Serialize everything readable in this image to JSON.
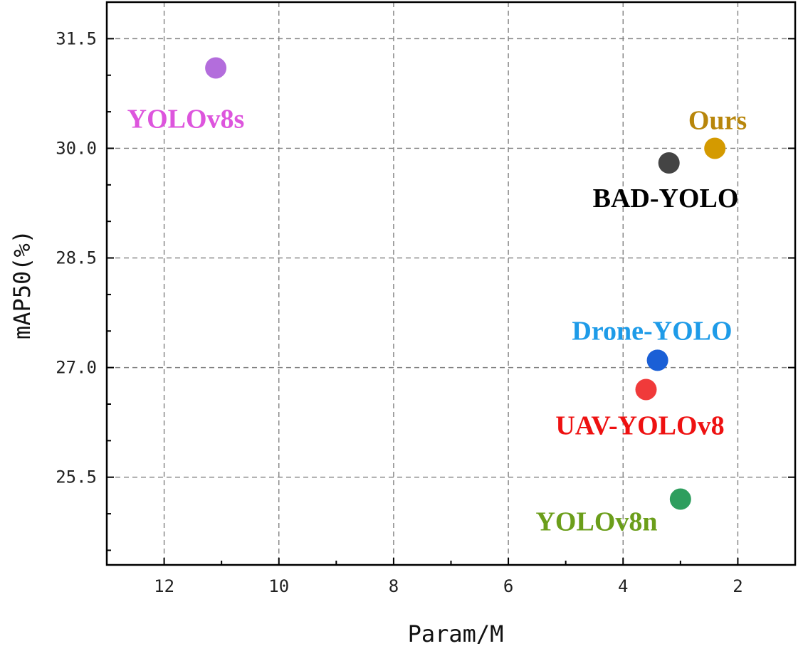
{
  "chart_data": {
    "type": "scatter",
    "title": "",
    "xlabel": "Param/M",
    "ylabel": "mAP50(%)",
    "xlim": [
      13,
      1
    ],
    "ylim": [
      24.3,
      32.0
    ],
    "x_reversed": true,
    "x_ticks": [
      12,
      10,
      8,
      6,
      4,
      2
    ],
    "x_tick_labels": [
      "12",
      "10",
      "8",
      "6",
      "4",
      "2"
    ],
    "y_ticks": [
      25.5,
      27.0,
      28.5,
      30.0,
      31.5
    ],
    "y_tick_labels": [
      "25.5",
      "27.0",
      "28.5",
      "30.0",
      "31.5"
    ],
    "grid": true,
    "points": [
      {
        "label": "YOLOv8s",
        "x": 11.1,
        "y": 31.1,
        "color": "#b36ddc",
        "label_color": "#dd55dd"
      },
      {
        "label": "Ours",
        "x": 2.4,
        "y": 30.0,
        "color": "#d49a00",
        "label_color": "#b8860b"
      },
      {
        "label": "BAD-YOLO",
        "x": 3.2,
        "y": 29.8,
        "color": "#444444",
        "label_color": "#000000"
      },
      {
        "label": "Drone-YOLO",
        "x": 3.4,
        "y": 27.1,
        "color": "#1a5fd6",
        "label_color": "#1e9be8"
      },
      {
        "label": "UAV-YOLOv8",
        "x": 3.6,
        "y": 26.7,
        "color": "#f03a3a",
        "label_color": "#ee1111"
      },
      {
        "label": "YOLOv8n",
        "x": 3.0,
        "y": 25.2,
        "color": "#2e9e5e",
        "label_color": "#6b9e1a"
      }
    ]
  }
}
